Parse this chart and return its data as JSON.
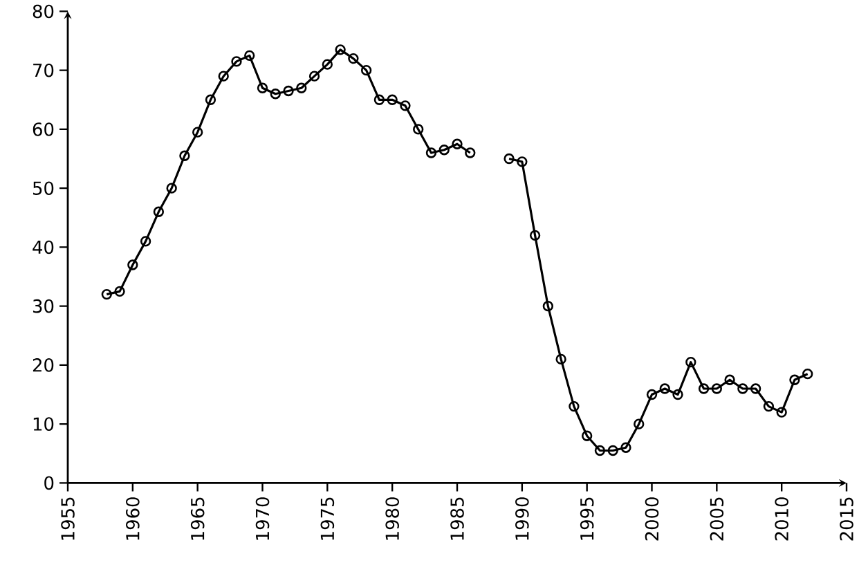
{
  "chart_data": {
    "type": "line",
    "marker": "circle",
    "grid": false,
    "x": [
      1958,
      1959,
      1960,
      1961,
      1962,
      1963,
      1964,
      1965,
      1966,
      1967,
      1968,
      1969,
      1970,
      1971,
      1972,
      1973,
      1974,
      1975,
      1976,
      1977,
      1978,
      1979,
      1980,
      1981,
      1982,
      1983,
      1984,
      1985,
      1986,
      1987,
      1988,
      1989,
      1990,
      1991,
      1992,
      1993,
      1994,
      1995,
      1996,
      1997,
      1998,
      1999,
      2000,
      2001,
      2002,
      2003,
      2004,
      2005,
      2006,
      2007,
      2008,
      2009,
      2010,
      2011,
      2012
    ],
    "series": [
      {
        "color": "#000000",
        "values": [
          32,
          32.5,
          37,
          41,
          46,
          50,
          55.5,
          59.5,
          65,
          69,
          71.5,
          72.5,
          67,
          66,
          66.5,
          67,
          69,
          71,
          73.5,
          72,
          70,
          65,
          65,
          64,
          60,
          56,
          56.5,
          57.5,
          56,
          null,
          null,
          55,
          54.5,
          42,
          30,
          21,
          13,
          8,
          5.5,
          5.5,
          6,
          10,
          15,
          16,
          15,
          20.5,
          16,
          16,
          17.5,
          16,
          16,
          13,
          12,
          17.5,
          18.5
        ]
      }
    ],
    "xlim": [
      1955,
      2015
    ],
    "xticks": [
      1955,
      1960,
      1965,
      1970,
      1975,
      1980,
      1985,
      1990,
      1995,
      2000,
      2005,
      2010,
      2015
    ],
    "ylim": [
      0,
      80
    ],
    "yticks": [
      0,
      10,
      20,
      30,
      40,
      50,
      60,
      70,
      80
    ]
  }
}
